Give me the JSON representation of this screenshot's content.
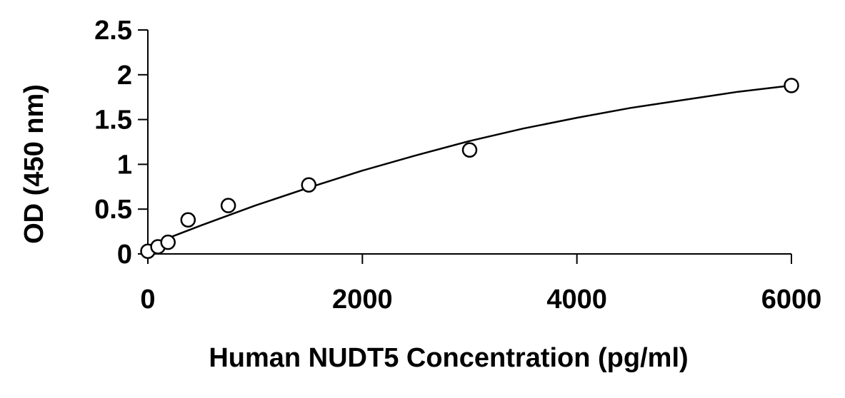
{
  "chart_data": {
    "type": "scatter",
    "title": "",
    "xlabel": "Human NUDT5 Concentration (pg/ml)",
    "ylabel": "OD (450 nm)",
    "xlim": [
      0,
      6000
    ],
    "ylim": [
      0,
      2.5
    ],
    "x_ticks": [
      "0",
      "2000",
      "4000",
      "6000"
    ],
    "y_ticks": [
      "0",
      "0.5",
      "1",
      "1.5",
      "2",
      "2.5"
    ],
    "grid": false,
    "legend": "none",
    "series": [
      {
        "type": "scatter",
        "marker": "open-circle",
        "x": [
          0,
          94,
          188,
          375,
          750,
          1500,
          3000,
          6000
        ],
        "y": [
          0.03,
          0.08,
          0.13,
          0.38,
          0.54,
          0.77,
          1.16,
          1.88
        ]
      },
      {
        "type": "line",
        "x": [
          0,
          500,
          1000,
          1500,
          2000,
          2500,
          3000,
          3500,
          4000,
          4500,
          5000,
          5500,
          6000
        ],
        "y": [
          0.09,
          0.32,
          0.54,
          0.74,
          0.93,
          1.1,
          1.26,
          1.4,
          1.52,
          1.63,
          1.72,
          1.81,
          1.88
        ]
      }
    ],
    "colors": {
      "axis": "#000000",
      "marker_fill": "#ffffff",
      "marker_stroke": "#000000",
      "line": "#000000"
    }
  }
}
